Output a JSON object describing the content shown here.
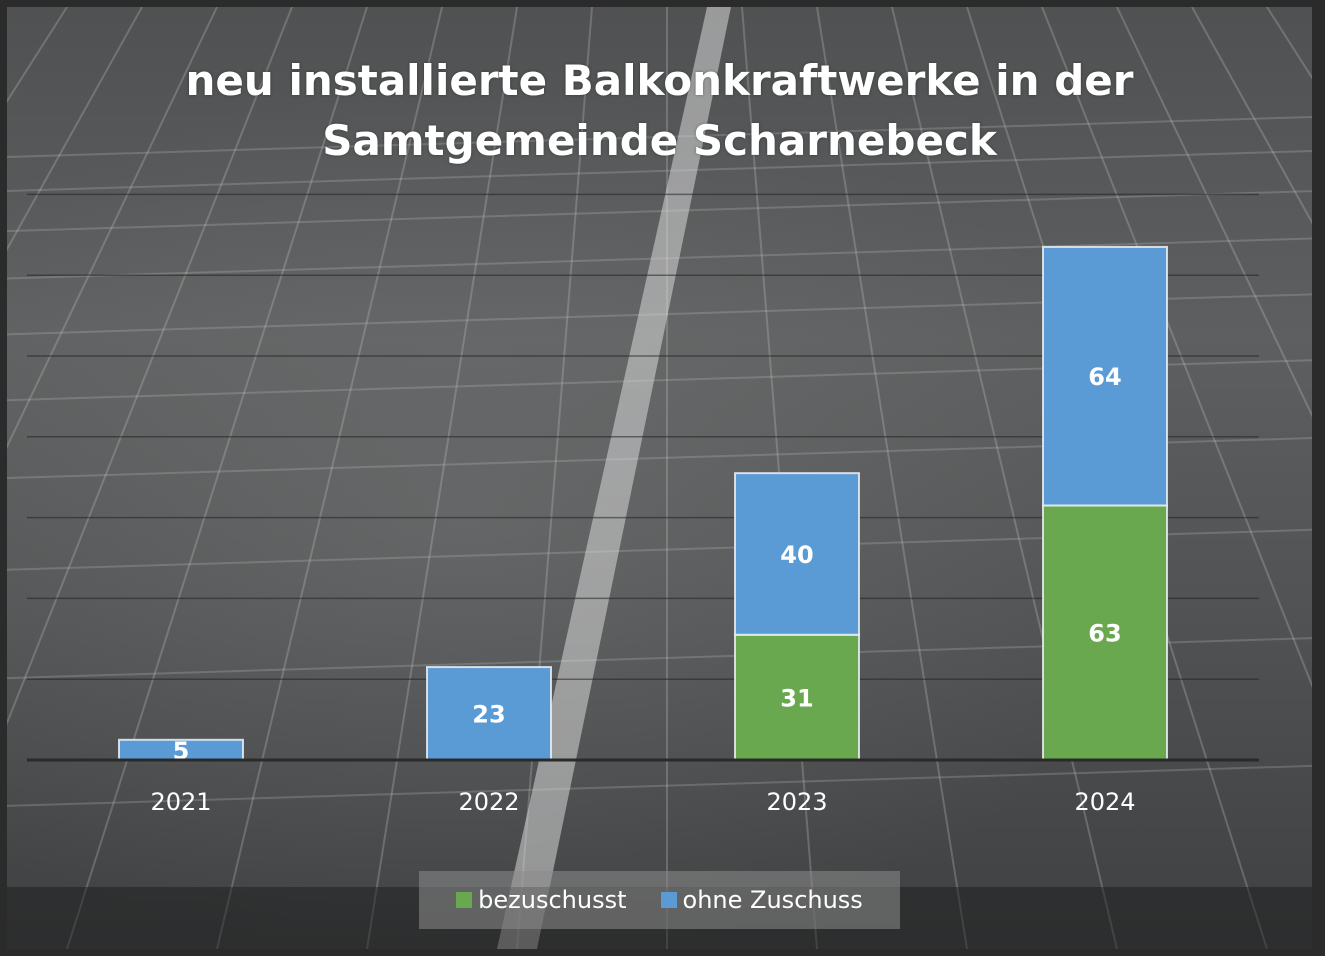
{
  "chart_data": {
    "type": "bar",
    "stacked": true,
    "title": "neu installierte  Balkonkraftwerke in der\nSamtgemeinde Scharnebeck",
    "categories": [
      "2021",
      "2022",
      "2023",
      "2024"
    ],
    "series": [
      {
        "name": "bezuschusst",
        "values": [
          0,
          0,
          31,
          63
        ],
        "color": "#6aa84f"
      },
      {
        "name": "ohne Zuschuss",
        "values": [
          5,
          23,
          40,
          64
        ],
        "color": "#5b9bd5"
      }
    ],
    "ylim": [
      0,
      140
    ],
    "gridlines": [
      20,
      40,
      60,
      80,
      100,
      120,
      140
    ],
    "grid": true,
    "legend": "bottom"
  }
}
